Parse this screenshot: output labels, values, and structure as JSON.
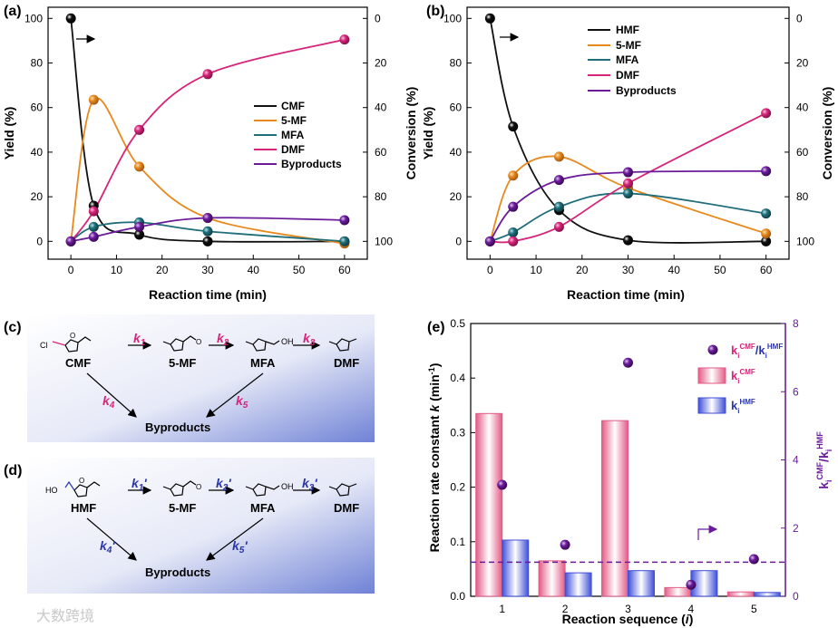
{
  "panels": {
    "a": {
      "label": "(a)",
      "ylabel": "Yield (%)",
      "y2label": "Conversion (%)",
      "xlabel": "Reaction time (min)",
      "x_ticks": [
        "0",
        "10",
        "20",
        "30",
        "40",
        "50",
        "60"
      ],
      "y_ticks": [
        "0",
        "20",
        "40",
        "60",
        "80",
        "100"
      ],
      "y2_ticks": [
        "100",
        "80",
        "60",
        "40",
        "20",
        "0"
      ],
      "legend": [
        "CMF",
        "5-MF",
        "MFA",
        "DMF",
        "Byproducts"
      ]
    },
    "b": {
      "label": "(b)",
      "ylabel": "Yield (%)",
      "y2label": "Conversion (%)",
      "xlabel": "Reaction time (min)",
      "x_ticks": [
        "0",
        "10",
        "20",
        "30",
        "40",
        "50",
        "60"
      ],
      "y_ticks": [
        "0",
        "20",
        "40",
        "60",
        "80",
        "100"
      ],
      "y2_ticks": [
        "100",
        "80",
        "60",
        "40",
        "20",
        "0"
      ],
      "legend": [
        "HMF",
        "5-MF",
        "MFA",
        "DMF",
        "Byproducts"
      ]
    },
    "c": {
      "label": "(c)",
      "species": [
        "CMF",
        "5-MF",
        "MFA",
        "DMF",
        "Byproducts"
      ],
      "k": [
        "k",
        "k",
        "k",
        "k",
        "k"
      ],
      "k_sub": [
        "1",
        "2",
        "3",
        "4",
        "5"
      ],
      "atoms": {
        "cl": "Cl",
        "oh": "OH",
        "o": "O"
      }
    },
    "d": {
      "label": "(d)",
      "species": [
        "HMF",
        "5-MF",
        "MFA",
        "DMF",
        "Byproducts"
      ],
      "k": [
        "k",
        "k",
        "k",
        "k",
        "k"
      ],
      "k_sub": [
        "1",
        "2",
        "3",
        "4",
        "5"
      ],
      "prime": "'",
      "atoms": {
        "ho": "HO",
        "oh": "OH",
        "o": "O"
      }
    },
    "e": {
      "label": "(e)",
      "ylabel": "Reaction rate constant",
      "ylabel_k": "k",
      "ylabel_unit": "(min",
      "ylabel_exp": "-1",
      "ylabel_close": ")",
      "xlabel": "Reaction sequence (",
      "xlabel_i": "i",
      "xlabel_close": ")",
      "y_ticks": [
        "0.0",
        "0.1",
        "0.2",
        "0.3",
        "0.4",
        "0.5"
      ],
      "y2_ticks": [
        "0",
        "2",
        "4",
        "6",
        "8"
      ],
      "x_ticks": [
        "1",
        "2",
        "3",
        "4",
        "5"
      ],
      "y2label": {
        "k": "k",
        "sub": "i",
        "sup1": "CMF",
        "sep": "/k",
        "sup2": "HMF"
      },
      "legend": {
        "k": "k",
        "sub": "i",
        "cmf": "CMF",
        "hmf": "HMF",
        "sep": "/k"
      }
    }
  },
  "colors": {
    "black": "#111111",
    "orange": "#e8891e",
    "teal": "#1f6e7a",
    "pink": "#d6247a",
    "purple": "#6a1b9a",
    "bar_pink": "#e35a86",
    "bar_blue": "#3f4fd8",
    "dash": "#6a1b9a",
    "k_pink": "#d6247a",
    "k_blue": "#2a36a8"
  },
  "watermark": "大数跨境",
  "chart_data": [
    {
      "type": "line",
      "panel": "a",
      "title": "",
      "xlabel": "Reaction time (min)",
      "ylabel": "Yield (%)",
      "y2label": "Conversion (%)",
      "xlim": [
        -5,
        65
      ],
      "ylim": [
        -8,
        105
      ],
      "x": [
        0,
        5,
        15,
        30,
        60
      ],
      "series": [
        {
          "name": "CMF",
          "color": "#111111",
          "values": [
            100,
            16,
            3,
            0,
            0
          ]
        },
        {
          "name": "5-MF",
          "color": "#e8891e",
          "values": [
            0,
            63.5,
            33.5,
            10.5,
            -1
          ]
        },
        {
          "name": "MFA",
          "color": "#1f6e7a",
          "values": [
            0,
            6.5,
            8.5,
            4.5,
            0
          ]
        },
        {
          "name": "DMF",
          "color": "#d6247a",
          "values": [
            0,
            13.5,
            50,
            75,
            90.5
          ]
        },
        {
          "name": "Byproducts",
          "color": "#6a1b9a",
          "values": [
            0,
            2,
            6.5,
            10.5,
            9.5
          ]
        }
      ]
    },
    {
      "type": "line",
      "panel": "b",
      "title": "",
      "xlabel": "Reaction time (min)",
      "ylabel": "Yield (%)",
      "y2label": "Conversion (%)",
      "xlim": [
        -5,
        65
      ],
      "ylim": [
        -8,
        105
      ],
      "x": [
        0,
        5,
        15,
        30,
        60
      ],
      "series": [
        {
          "name": "HMF",
          "color": "#111111",
          "values": [
            100,
            51.5,
            14,
            0.5,
            0
          ]
        },
        {
          "name": "5-MF",
          "color": "#e8891e",
          "values": [
            0,
            29.5,
            38,
            24,
            3.5
          ]
        },
        {
          "name": "MFA",
          "color": "#1f6e7a",
          "values": [
            0,
            4,
            15.5,
            21.5,
            12.5
          ]
        },
        {
          "name": "DMF",
          "color": "#d6247a",
          "values": [
            0,
            0,
            6.5,
            26,
            57.5
          ]
        },
        {
          "name": "Byproducts",
          "color": "#6a1b9a",
          "values": [
            0,
            15.5,
            27.5,
            31,
            31.5
          ]
        }
      ]
    },
    {
      "type": "bar",
      "panel": "e",
      "title": "",
      "xlabel": "Reaction sequence (i)",
      "ylabel": "Reaction rate constant k (min-1)",
      "y2label": "ki CMF/ki HMF",
      "categories": [
        "1",
        "2",
        "3",
        "4",
        "5"
      ],
      "ylim": [
        0,
        0.5
      ],
      "y2lim": [
        0,
        8
      ],
      "series": [
        {
          "name": "ki CMF",
          "color": "#e35a86",
          "values": [
            0.335,
            0.065,
            0.322,
            0.016,
            0.008
          ]
        },
        {
          "name": "ki HMF",
          "color": "#3f4fd8",
          "values": [
            0.103,
            0.043,
            0.047,
            0.047,
            0.007
          ]
        },
        {
          "name": "ki CMF/ki HMF",
          "color": "#6a1b9a",
          "axis": "right",
          "values": [
            3.27,
            1.51,
            6.85,
            0.34,
            1.09
          ]
        }
      ],
      "reference_line": {
        "axis": "right",
        "value": 1.0
      }
    }
  ]
}
